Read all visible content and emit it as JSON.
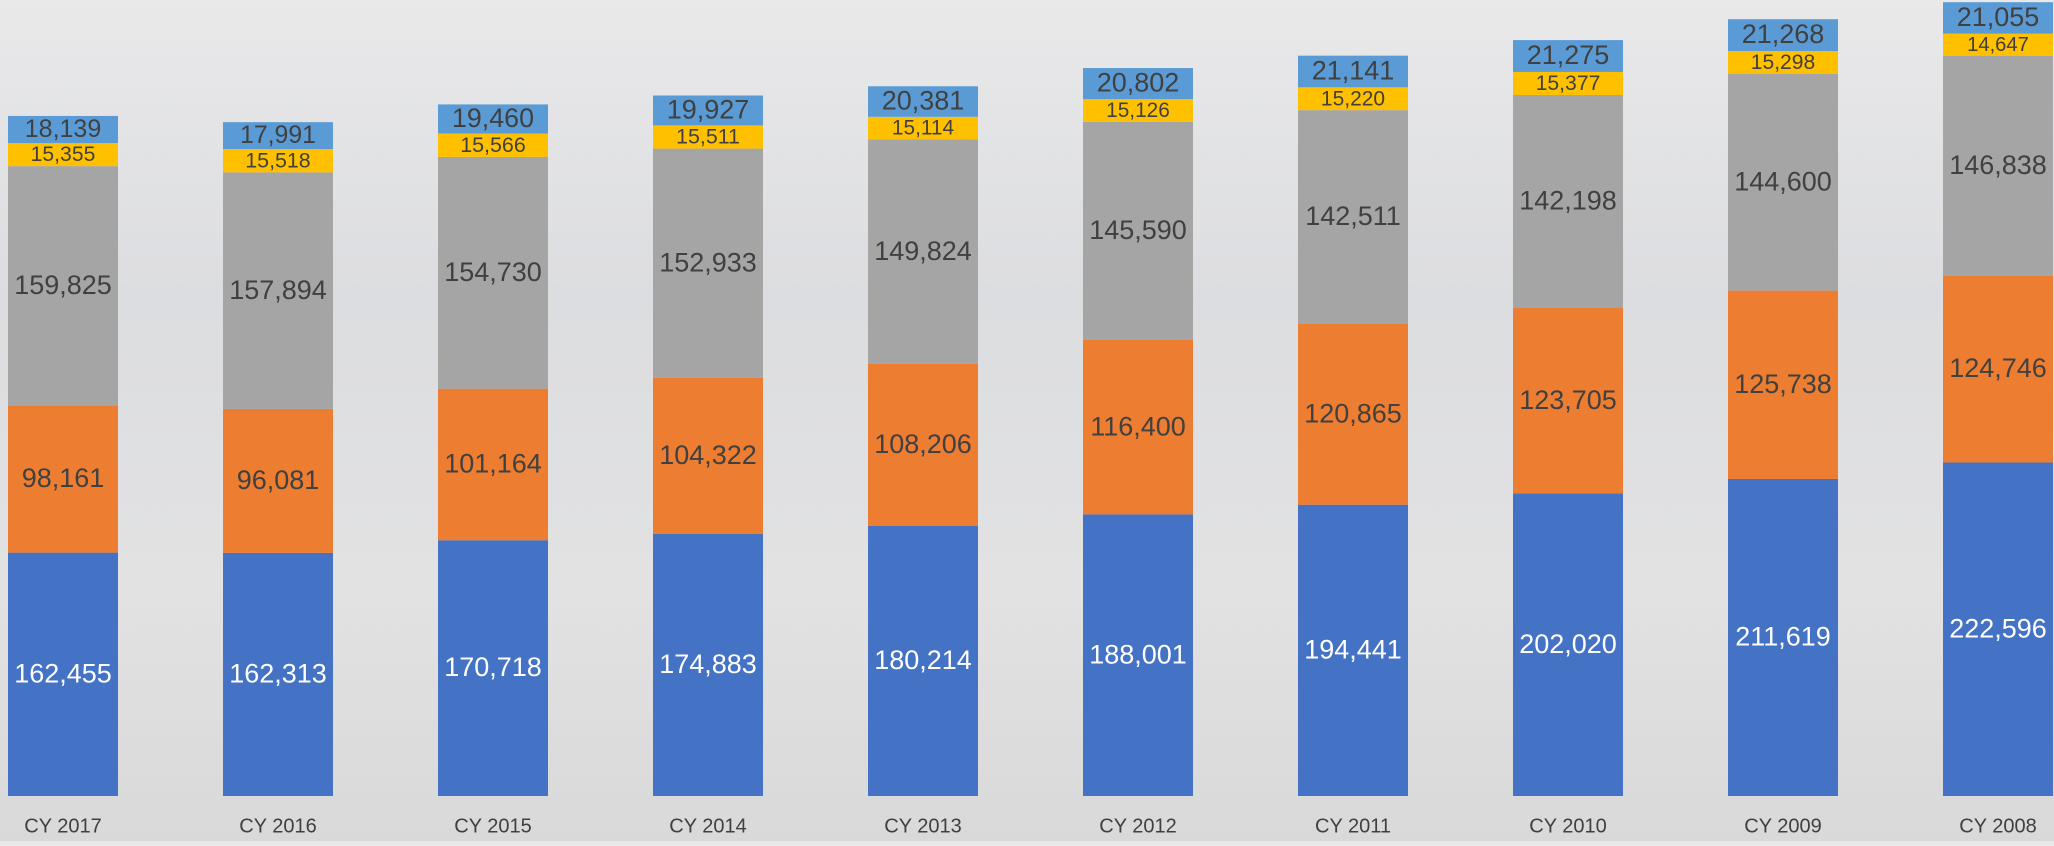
{
  "chart_data": {
    "type": "stacked-bar",
    "categories": [
      "CY 2017",
      "CY 2016",
      "CY 2015",
      "CY 2014",
      "CY 2013",
      "CY 2012",
      "CY 2011",
      "CY 2010",
      "CY 2009",
      "CY 2008"
    ],
    "ylim": [
      0,
      530000
    ],
    "series": [
      {
        "color": "#4472c4",
        "label_color": "#ffffff",
        "values": [
          162455,
          162313,
          170718,
          174883,
          180214,
          188001,
          194441,
          202020,
          211619,
          222596
        ],
        "value_labels": [
          "162,455",
          "162,313",
          "170,718",
          "174,883",
          "180,214",
          "188,001",
          "194,441",
          "202,020",
          "211,619",
          "222,596"
        ]
      },
      {
        "color": "#ed7d31",
        "label_color": "#404040",
        "values": [
          98161,
          96081,
          101164,
          104322,
          108206,
          116400,
          120865,
          123705,
          125738,
          124746
        ],
        "value_labels": [
          "98,161",
          "96,081",
          "101,164",
          "104,322",
          "108,206",
          "116,400",
          "120,865",
          "123,705",
          "125,738",
          "124,746"
        ]
      },
      {
        "color": "#a5a5a5",
        "label_color": "#404040",
        "values": [
          159825,
          157894,
          154730,
          152933,
          149824,
          145590,
          142511,
          142198,
          144600,
          146838
        ],
        "value_labels": [
          "159,825",
          "157,894",
          "154,730",
          "152,933",
          "149,824",
          "145,590",
          "142,511",
          "142,198",
          "144,600",
          "146,838"
        ]
      },
      {
        "color": "#ffc000",
        "label_color": "#404040",
        "values": [
          15355,
          15518,
          15566,
          15511,
          15114,
          15126,
          15220,
          15377,
          15298,
          14647
        ],
        "value_labels": [
          "15,355",
          "15,518",
          "15,566",
          "15,511",
          "15,114",
          "15,126",
          "15,220",
          "15,377",
          "15,298",
          "14,647"
        ]
      },
      {
        "color": "#5b9bd5",
        "label_color": "#404040",
        "values": [
          18139,
          17991,
          19460,
          19927,
          20381,
          20802,
          21141,
          21275,
          21268,
          21055
        ],
        "value_labels": [
          "18,139",
          "17,991",
          "19,460",
          "19,927",
          "20,381",
          "20,802",
          "21,141",
          "21,275",
          "21,268",
          "21,055"
        ]
      }
    ]
  }
}
